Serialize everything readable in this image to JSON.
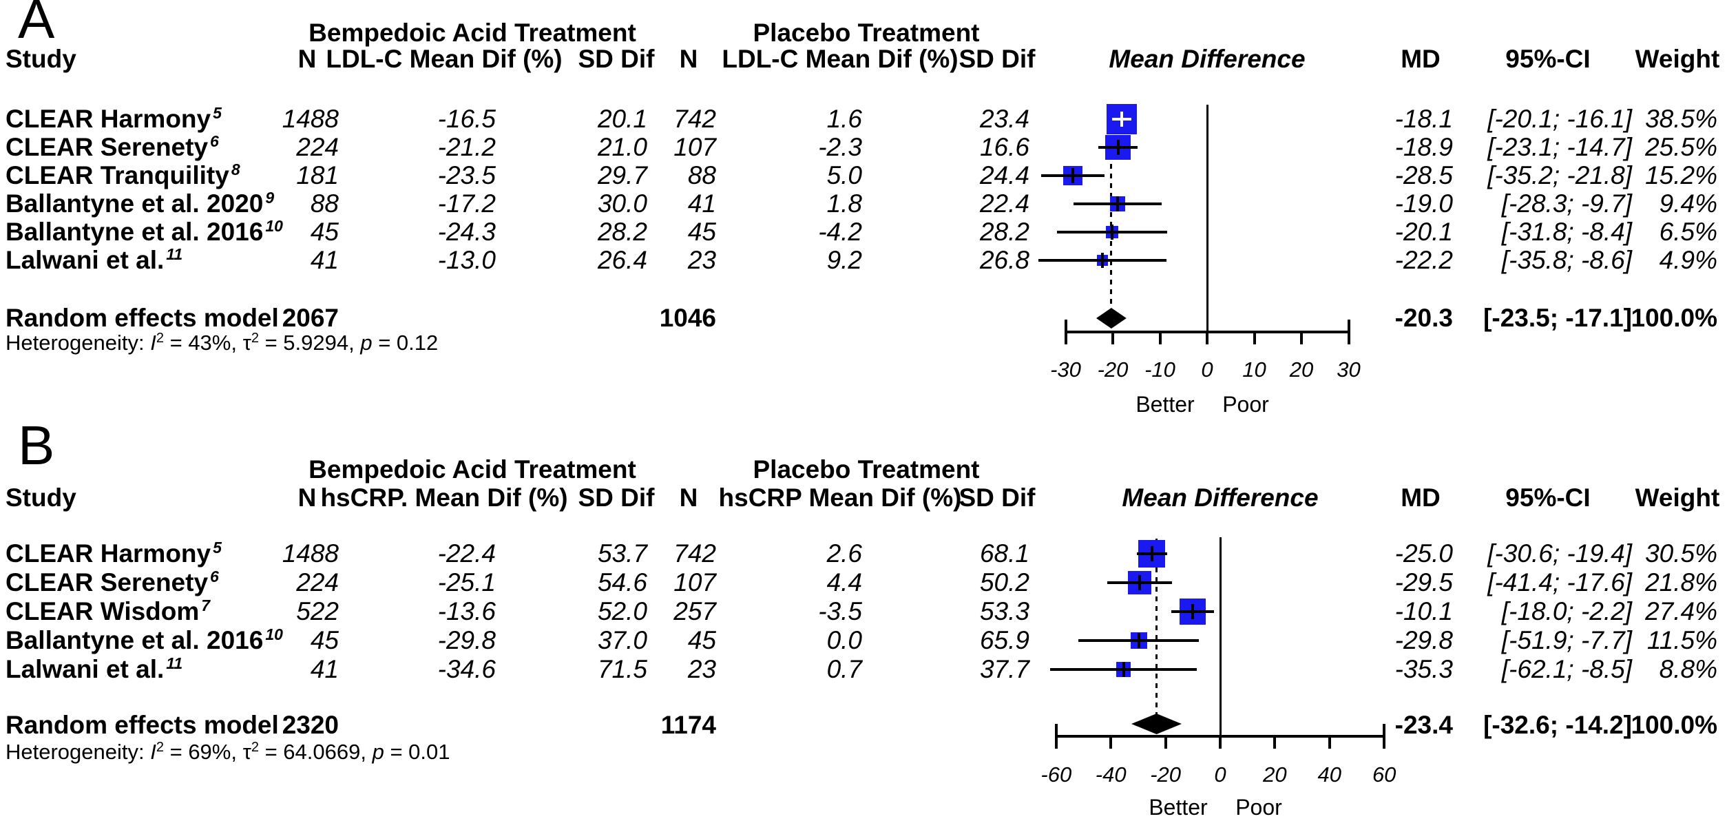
{
  "colors": {
    "square": "#1a1af0",
    "diamond": "#000000",
    "lines": "#000000",
    "background": "#ffffff",
    "text": "#000000"
  },
  "chart_data": [
    {
      "type": "forest",
      "panel_label": "A",
      "title_treatment": "Bempedoic Acid Treatment",
      "title_placebo": "Placebo Treatment",
      "columns": {
        "study": "Study",
        "n": "N",
        "mean_dif_treatment": "LDL-C Mean Dif (%)",
        "sd": "SD Dif",
        "n_placebo": "N",
        "mean_dif_placebo": "LDL-C Mean Dif (%)",
        "sd_placebo": "SD Dif",
        "plot": "Mean Difference",
        "md": "MD",
        "ci": "95%-CI",
        "weight": "Weight"
      },
      "rows": [
        {
          "study": "CLEAR Harmony",
          "ref": "5",
          "n_t": "1488",
          "mean_t": "-16.5",
          "sd_t": "20.1",
          "n_p": "742",
          "mean_p": "1.6",
          "sd_p": "23.4",
          "md": -18.1,
          "lo": -20.1,
          "hi": -16.1,
          "md_text": "-18.1",
          "ci_text": "[-20.1; -16.1]",
          "weight": 38.5,
          "weight_text": "38.5%"
        },
        {
          "study": "CLEAR Serenety",
          "ref": "6",
          "n_t": "224",
          "mean_t": "-21.2",
          "sd_t": "21.0",
          "n_p": "107",
          "mean_p": "-2.3",
          "sd_p": "16.6",
          "md": -18.9,
          "lo": -23.1,
          "hi": -14.7,
          "md_text": "-18.9",
          "ci_text": "[-23.1; -14.7]",
          "weight": 25.5,
          "weight_text": "25.5%"
        },
        {
          "study": "CLEAR Tranquility",
          "ref": "8",
          "n_t": "181",
          "mean_t": "-23.5",
          "sd_t": "29.7",
          "n_p": "88",
          "mean_p": "5.0",
          "sd_p": "24.4",
          "md": -28.5,
          "lo": -35.2,
          "hi": -21.8,
          "md_text": "-28.5",
          "ci_text": "[-35.2; -21.8]",
          "weight": 15.2,
          "weight_text": "15.2%"
        },
        {
          "study": "Ballantyne et al. 2020",
          "ref": "9",
          "n_t": "88",
          "mean_t": "-17.2",
          "sd_t": "30.0",
          "n_p": "41",
          "mean_p": "1.8",
          "sd_p": "22.4",
          "md": -19.0,
          "lo": -28.3,
          "hi": -9.7,
          "md_text": "-19.0",
          "ci_text": "[-28.3; -9.7]",
          "weight": 9.4,
          "weight_text": "9.4%"
        },
        {
          "study": "Ballantyne et al. 2016",
          "ref": "10",
          "n_t": "45",
          "mean_t": "-24.3",
          "sd_t": "28.2",
          "n_p": "45",
          "mean_p": "-4.2",
          "sd_p": "28.2",
          "md": -20.1,
          "lo": -31.8,
          "hi": -8.4,
          "md_text": "-20.1",
          "ci_text": "[-31.8; -8.4]",
          "weight": 6.5,
          "weight_text": "6.5%"
        },
        {
          "study": "Lalwani et al.",
          "ref": "11",
          "n_t": "41",
          "mean_t": "-13.0",
          "sd_t": "26.4",
          "n_p": "23",
          "mean_p": "9.2",
          "sd_p": "26.8",
          "md": -22.2,
          "lo": -35.8,
          "hi": -8.6,
          "md_text": "-22.2",
          "ci_text": "[-35.8; -8.6]",
          "weight": 4.9,
          "weight_text": "4.9%"
        }
      ],
      "summary": {
        "study": "Random effects model",
        "n_t": "2067",
        "n_p": "1046",
        "md": -20.3,
        "lo": -23.5,
        "hi": -17.1,
        "md_text": "-20.3",
        "ci_text": "[-23.5; -17.1]",
        "weight_text": "100.0%"
      },
      "heterogeneity": {
        "parts": [
          {
            "t": "Heterogeneity: ",
            "s": "n"
          },
          {
            "t": "I",
            "s": "i"
          },
          {
            "t": "2",
            "s": "sup"
          },
          {
            "t": " = 43%, ",
            "s": "n"
          },
          {
            "t": "τ",
            "s": "n"
          },
          {
            "t": "2",
            "s": "sup"
          },
          {
            "t": " = 5.9294, ",
            "s": "n"
          },
          {
            "t": "p",
            "s": "i"
          },
          {
            "t": " = 0.12",
            "s": "n"
          }
        ]
      },
      "axis": {
        "min": -30,
        "max": 30,
        "ticks": [
          -30,
          -20,
          -10,
          0,
          10,
          20,
          30
        ],
        "tick_labels": [
          "-30",
          "-20",
          "-10",
          "0",
          "10",
          "20",
          "30"
        ],
        "left_label": "Better",
        "right_label": "Poor"
      }
    },
    {
      "type": "forest",
      "panel_label": "B",
      "title_treatment": "Bempedoic Acid Treatment",
      "title_placebo": "Placebo Treatment",
      "columns": {
        "study": "Study",
        "n": "N",
        "mean_dif_treatment": "hsCRP. Mean Dif (%)",
        "sd": "SD Dif",
        "n_placebo": "N",
        "mean_dif_placebo": "hsCRP Mean Dif (%)",
        "sd_placebo": "SD Dif",
        "plot": "Mean Difference",
        "md": "MD",
        "ci": "95%-CI",
        "weight": "Weight"
      },
      "rows": [
        {
          "study": "CLEAR Harmony",
          "ref": "5",
          "n_t": "1488",
          "mean_t": "-22.4",
          "sd_t": "53.7",
          "n_p": "742",
          "mean_p": "2.6",
          "sd_p": "68.1",
          "md": -25.0,
          "lo": -30.6,
          "hi": -19.4,
          "md_text": "-25.0",
          "ci_text": "[-30.6; -19.4]",
          "weight": 30.5,
          "weight_text": "30.5%"
        },
        {
          "study": "CLEAR Serenety",
          "ref": "6",
          "n_t": "224",
          "mean_t": "-25.1",
          "sd_t": "54.6",
          "n_p": "107",
          "mean_p": "4.4",
          "sd_p": "50.2",
          "md": -29.5,
          "lo": -41.4,
          "hi": -17.6,
          "md_text": "-29.5",
          "ci_text": "[-41.4; -17.6]",
          "weight": 21.8,
          "weight_text": "21.8%"
        },
        {
          "study": "CLEAR Wisdom",
          "ref": "7",
          "n_t": "522",
          "mean_t": "-13.6",
          "sd_t": "52.0",
          "n_p": "257",
          "mean_p": "-3.5",
          "sd_p": "53.3",
          "md": -10.1,
          "lo": -18.0,
          "hi": -2.2,
          "md_text": "-10.1",
          "ci_text": "[-18.0; -2.2]",
          "weight": 27.4,
          "weight_text": "27.4%"
        },
        {
          "study": "Ballantyne et al. 2016",
          "ref": "10",
          "n_t": "45",
          "mean_t": "-29.8",
          "sd_t": "37.0",
          "n_p": "45",
          "mean_p": "0.0",
          "sd_p": "65.9",
          "md": -29.8,
          "lo": -51.9,
          "hi": -7.7,
          "md_text": "-29.8",
          "ci_text": "[-51.9; -7.7]",
          "weight": 11.5,
          "weight_text": "11.5%"
        },
        {
          "study": "Lalwani et al.",
          "ref": "11",
          "n_t": "41",
          "mean_t": "-34.6",
          "sd_t": "71.5",
          "n_p": "23",
          "mean_p": "0.7",
          "sd_p": "37.7",
          "md": -35.3,
          "lo": -62.1,
          "hi": -8.5,
          "md_text": "-35.3",
          "ci_text": "[-62.1; -8.5]",
          "weight": 8.8,
          "weight_text": "8.8%"
        }
      ],
      "summary": {
        "study": "Random effects model",
        "n_t": "2320",
        "n_p": "1174",
        "md": -23.4,
        "lo": -32.6,
        "hi": -14.2,
        "md_text": "-23.4",
        "ci_text": "[-32.6; -14.2]",
        "weight_text": "100.0%"
      },
      "heterogeneity": {
        "parts": [
          {
            "t": "Heterogeneity: ",
            "s": "n"
          },
          {
            "t": "I",
            "s": "i"
          },
          {
            "t": "2",
            "s": "sup"
          },
          {
            "t": " = 69%, ",
            "s": "n"
          },
          {
            "t": "τ",
            "s": "n"
          },
          {
            "t": "2",
            "s": "sup"
          },
          {
            "t": " = 64.0669, ",
            "s": "n"
          },
          {
            "t": "p",
            "s": "i"
          },
          {
            "t": " = 0.01",
            "s": "n"
          }
        ]
      },
      "axis": {
        "min": -60,
        "max": 60,
        "ticks": [
          -60,
          -40,
          -20,
          0,
          20,
          40,
          60
        ],
        "tick_labels": [
          "-60",
          "-40",
          "-20",
          "0",
          "20",
          "40",
          "60"
        ],
        "left_label": "Better",
        "right_label": "Poor"
      }
    }
  ]
}
